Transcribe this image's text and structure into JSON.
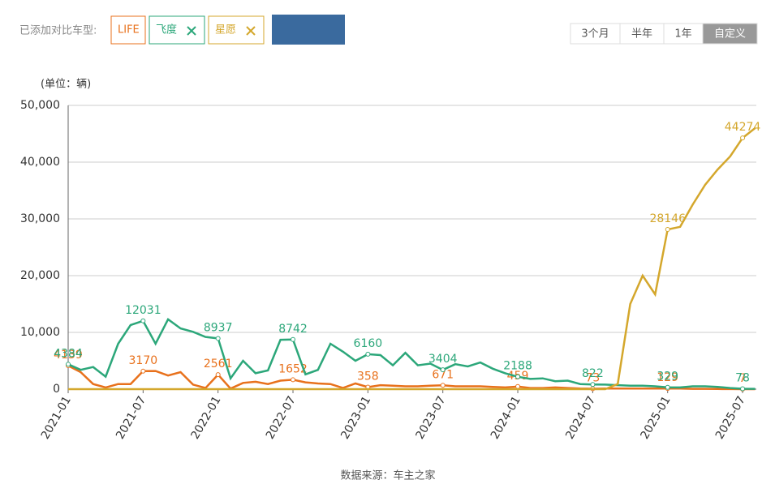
{
  "chart_data": {
    "type": "line",
    "compare_label": "已添加对比车型:",
    "range_tabs": [
      "3个月",
      "半年",
      "1年",
      "自定义"
    ],
    "active_tab": 3,
    "unit_label": "(单位：辆)",
    "source": "数据来源：车主之家",
    "categories": [
      "2021-01",
      null,
      null,
      null,
      null,
      null,
      "2021-07",
      null,
      null,
      null,
      null,
      null,
      "2022-01",
      null,
      null,
      null,
      null,
      null,
      "2022-07",
      null,
      null,
      null,
      null,
      null,
      "2023-01",
      null,
      null,
      null,
      null,
      null,
      "2023-07",
      null,
      null,
      null,
      null,
      null,
      "2024-01",
      null,
      null,
      null,
      null,
      null,
      "2024-07",
      null,
      null,
      null,
      null,
      null,
      "2025-01",
      null,
      null,
      null,
      null,
      null,
      "2025-07",
      null
    ],
    "ylim": [
      0,
      50000
    ],
    "yticks": [
      0,
      {
        "value": 10000,
        "label": "10,000"
      },
      {
        "value": 20000,
        "label": "20,000"
      },
      {
        "value": 30000,
        "label": "30,000"
      },
      {
        "value": 40000,
        "label": "40,000"
      },
      {
        "value": 50000,
        "label": "50,000"
      }
    ],
    "grid": true,
    "series": [
      {
        "name": "LIFE",
        "color": "#e8711c",
        "values": [
          4139,
          3000,
          900,
          300,
          900,
          900,
          3170,
          3200,
          2400,
          3000,
          800,
          200,
          2561,
          100,
          1100,
          1300,
          900,
          1500,
          1652,
          1200,
          1000,
          900,
          200,
          1000,
          358,
          700,
          600,
          500,
          500,
          600,
          671,
          500,
          500,
          500,
          400,
          300,
          459,
          200,
          200,
          300,
          200,
          100,
          73,
          100,
          100,
          100,
          100,
          100,
          129,
          100,
          50,
          50,
          30,
          20,
          7,
          5
        ]
      },
      {
        "name": "飞度",
        "color": "#2ca77a",
        "values": [
          4384,
          3400,
          3900,
          2200,
          8000,
          11300,
          12031,
          8000,
          12300,
          10700,
          10100,
          9200,
          8937,
          1900,
          5000,
          2800,
          3300,
          8700,
          8742,
          2600,
          3400,
          8000,
          6600,
          5000,
          6160,
          6000,
          4200,
          6400,
          4200,
          4500,
          3404,
          4400,
          4000,
          4700,
          3600,
          2800,
          2188,
          1800,
          1900,
          1400,
          1500,
          900,
          822,
          800,
          700,
          600,
          600,
          500,
          329,
          300,
          500,
          500,
          400,
          200,
          78,
          50
        ]
      },
      {
        "name": "星愿",
        "color": "#d4a72c",
        "values": [
          0,
          0,
          0,
          0,
          0,
          0,
          0,
          0,
          0,
          0,
          0,
          0,
          0,
          0,
          0,
          0,
          0,
          0,
          0,
          0,
          0,
          0,
          0,
          0,
          0,
          0,
          0,
          0,
          0,
          0,
          0,
          0,
          0,
          0,
          0,
          0,
          0,
          0,
          0,
          0,
          0,
          0,
          0,
          0,
          900,
          15000,
          20000,
          16700,
          28146,
          28600,
          32500,
          36000,
          38700,
          41000,
          44274,
          46000
        ]
      }
    ]
  }
}
